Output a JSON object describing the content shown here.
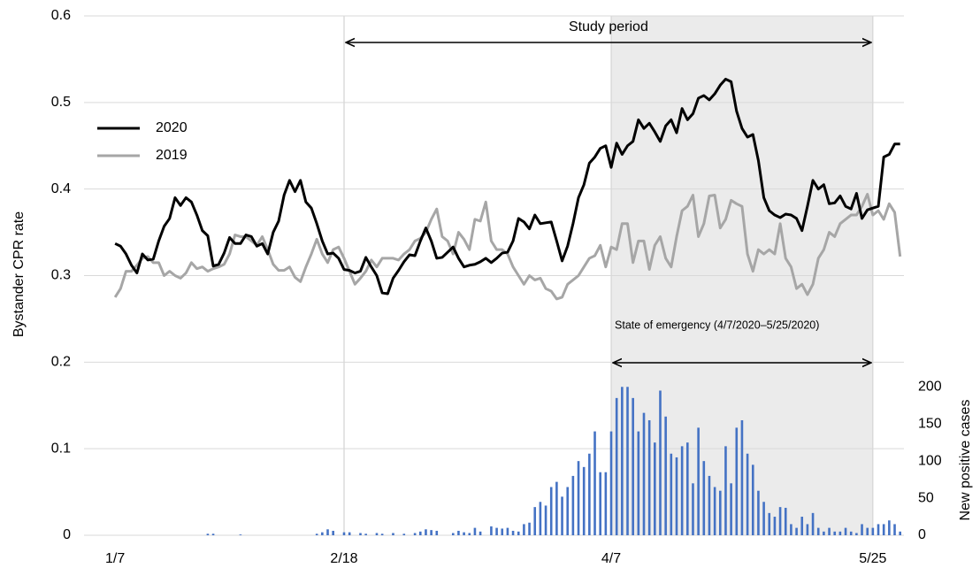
{
  "chart_data": {
    "type": "line",
    "ylabel": "Bystander CPR rate",
    "y2label": "New positive cases",
    "x": [
      7,
      8,
      9,
      10,
      11,
      12,
      13,
      14,
      15,
      16,
      17,
      18,
      19,
      20,
      21,
      22,
      23,
      24,
      25,
      26,
      27,
      28,
      29,
      30,
      31,
      32,
      33,
      34,
      35,
      36,
      37,
      38,
      39,
      40,
      41,
      42,
      43,
      44,
      45,
      46,
      47,
      48,
      49,
      50,
      51,
      52,
      53,
      54,
      55,
      56,
      57,
      58,
      59,
      60,
      61,
      62,
      63,
      64,
      65,
      66,
      67,
      68,
      69,
      70,
      71,
      72,
      73,
      74,
      75,
      76,
      77,
      78,
      79,
      80,
      81,
      82,
      83,
      84,
      85,
      86,
      87,
      88,
      89,
      90,
      91,
      92,
      93,
      94,
      95,
      96,
      97,
      98,
      99,
      100,
      101,
      102,
      103,
      104,
      105,
      106,
      107,
      108,
      109,
      110,
      111,
      112,
      113,
      114,
      115,
      116,
      117,
      118,
      119,
      120,
      121,
      122,
      123,
      124,
      125,
      126,
      127,
      128,
      129,
      130,
      131,
      132,
      133,
      134,
      135,
      136,
      137,
      138,
      139,
      140,
      141,
      142,
      143,
      144,
      145,
      146,
      147,
      148,
      149,
      150,
      151
    ],
    "xlim": [
      1.3,
      151.7
    ],
    "xticks": [
      {
        "value": 7,
        "label": "1/7"
      },
      {
        "value": 49,
        "label": "2/18"
      },
      {
        "value": 98,
        "label": "4/7"
      },
      {
        "value": 146,
        "label": "5/25"
      }
    ],
    "ylim": [
      0,
      0.6
    ],
    "yticks": [
      0,
      0.1,
      0.2,
      0.3,
      0.4,
      0.5,
      0.6
    ],
    "y2lim": [
      0,
      700
    ],
    "y2ticks": [
      0,
      50,
      100,
      150,
      200
    ],
    "grid": true,
    "legend": "upper left",
    "series": [
      {
        "name": "2020",
        "color": "#000000",
        "values": [
          0.337,
          0.334,
          0.325,
          0.312,
          0.303,
          0.325,
          0.318,
          0.319,
          0.34,
          0.357,
          0.366,
          0.39,
          0.381,
          0.39,
          0.385,
          0.37,
          0.352,
          0.346,
          0.311,
          0.313,
          0.326,
          0.344,
          0.337,
          0.337,
          0.347,
          0.345,
          0.334,
          0.337,
          0.325,
          0.35,
          0.363,
          0.393,
          0.41,
          0.397,
          0.41,
          0.385,
          0.378,
          0.36,
          0.34,
          0.325,
          0.326,
          0.32,
          0.307,
          0.306,
          0.303,
          0.305,
          0.321,
          0.31,
          0.3,
          0.28,
          0.279,
          0.297,
          0.306,
          0.316,
          0.324,
          0.323,
          0.34,
          0.355,
          0.34,
          0.32,
          0.321,
          0.327,
          0.333,
          0.32,
          0.31,
          0.312,
          0.313,
          0.316,
          0.32,
          0.315,
          0.32,
          0.326,
          0.327,
          0.34,
          0.366,
          0.362,
          0.354,
          0.37,
          0.36,
          0.361,
          0.362,
          0.34,
          0.317,
          0.334,
          0.36,
          0.39,
          0.405,
          0.43,
          0.437,
          0.447,
          0.45,
          0.425,
          0.453,
          0.44,
          0.45,
          0.455,
          0.48,
          0.47,
          0.476,
          0.466,
          0.455,
          0.473,
          0.48,
          0.465,
          0.493,
          0.48,
          0.487,
          0.505,
          0.508,
          0.503,
          0.51,
          0.52,
          0.527,
          0.524,
          0.49,
          0.47,
          0.46,
          0.463,
          0.433,
          0.39,
          0.375,
          0.37,
          0.367,
          0.371,
          0.37,
          0.366,
          0.352,
          0.38,
          0.41,
          0.4,
          0.405,
          0.383,
          0.384,
          0.392,
          0.38,
          0.377,
          0.395,
          0.366,
          0.376,
          0.378,
          0.38,
          0.437,
          0.44,
          0.452,
          0.452
        ]
      },
      {
        "name": "2019",
        "color": "#a6a6a6",
        "values": [
          0.275,
          0.285,
          0.305,
          0.305,
          0.312,
          0.32,
          0.322,
          0.315,
          0.315,
          0.3,
          0.305,
          0.3,
          0.297,
          0.303,
          0.315,
          0.308,
          0.31,
          0.305,
          0.308,
          0.31,
          0.313,
          0.325,
          0.347,
          0.345,
          0.345,
          0.34,
          0.335,
          0.345,
          0.33,
          0.313,
          0.306,
          0.306,
          0.31,
          0.298,
          0.293,
          0.31,
          0.325,
          0.342,
          0.325,
          0.315,
          0.33,
          0.333,
          0.32,
          0.305,
          0.29,
          0.297,
          0.305,
          0.318,
          0.31,
          0.32,
          0.32,
          0.32,
          0.318,
          0.325,
          0.33,
          0.34,
          0.343,
          0.35,
          0.365,
          0.377,
          0.345,
          0.34,
          0.325,
          0.35,
          0.342,
          0.33,
          0.365,
          0.363,
          0.385,
          0.34,
          0.33,
          0.33,
          0.325,
          0.31,
          0.3,
          0.29,
          0.3,
          0.295,
          0.297,
          0.285,
          0.282,
          0.273,
          0.275,
          0.29,
          0.295,
          0.3,
          0.31,
          0.32,
          0.323,
          0.335,
          0.31,
          0.333,
          0.33,
          0.36,
          0.36,
          0.315,
          0.34,
          0.34,
          0.307,
          0.335,
          0.345,
          0.32,
          0.31,
          0.345,
          0.375,
          0.38,
          0.393,
          0.345,
          0.36,
          0.392,
          0.393,
          0.355,
          0.365,
          0.387,
          0.383,
          0.38,
          0.325,
          0.305,
          0.33,
          0.325,
          0.33,
          0.325,
          0.36,
          0.32,
          0.31,
          0.285,
          0.29,
          0.278,
          0.29,
          0.32,
          0.33,
          0.35,
          0.345,
          0.36,
          0.365,
          0.37,
          0.37,
          0.38,
          0.394,
          0.37,
          0.375,
          0.365,
          0.383,
          0.373,
          0.322
        ]
      },
      {
        "type": "bar",
        "axis": "y2",
        "color": "#4472c4",
        "values": [
          0,
          0,
          0,
          0,
          0,
          0,
          0,
          0,
          0,
          0,
          0,
          0,
          0,
          0,
          0,
          0,
          0,
          2,
          2,
          0,
          0,
          0,
          0,
          1,
          0,
          0,
          0,
          0,
          0,
          0,
          0,
          0,
          0,
          0,
          0,
          0,
          0,
          2,
          4,
          8,
          6,
          0,
          4,
          4,
          0,
          3,
          2,
          0,
          3,
          2,
          0,
          3,
          0,
          2,
          0,
          3,
          5,
          8,
          7,
          6,
          0,
          0,
          3,
          6,
          4,
          3,
          10,
          5,
          0,
          12,
          10,
          9,
          10,
          6,
          5,
          15,
          17,
          38,
          45,
          40,
          65,
          72,
          52,
          65,
          80,
          100,
          92,
          110,
          140,
          85,
          85,
          140,
          185,
          200,
          200,
          185,
          140,
          165,
          155,
          125,
          195,
          160,
          110,
          105,
          120,
          125,
          70,
          145,
          100,
          80,
          65,
          60,
          120,
          70,
          145,
          155,
          110,
          95,
          60,
          45,
          30,
          25,
          38,
          37,
          15,
          10,
          25,
          15,
          30,
          10,
          5,
          10,
          5,
          5,
          10,
          5,
          3,
          15,
          10,
          10,
          15,
          15,
          20,
          15,
          5
        ]
      }
    ],
    "annotations": [
      {
        "text": "Study period",
        "x": [
          49,
          146
        ]
      },
      {
        "text": "State of emergency (4/7/2020–5/25/2020)",
        "x": [
          98,
          146
        ]
      }
    ]
  }
}
